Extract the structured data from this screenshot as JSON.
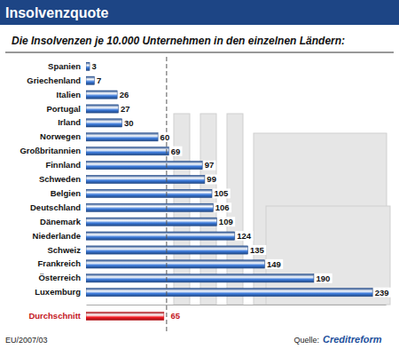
{
  "chart_data": {
    "type": "bar",
    "title": "Insolvenzquote",
    "subtitle": "Die Insolvenzen je 10.000 Unternehmen in den einzelnen Ländern:",
    "orientation": "horizontal",
    "categories": [
      "Spanien",
      "Griechenland",
      "Italien",
      "Portugal",
      "Irland",
      "Norwegen",
      "Großbritannien",
      "Finnland",
      "Schweden",
      "Belgien",
      "Deutschland",
      "Dänemark",
      "Niederlande",
      "Schweiz",
      "Frankreich",
      "Österreich",
      "Luxemburg"
    ],
    "values": [
      3,
      7,
      26,
      27,
      30,
      60,
      69,
      97,
      99,
      105,
      106,
      109,
      124,
      135,
      149,
      190,
      239
    ],
    "color": "#2f62b0",
    "data_labels": true,
    "tick_labels": "y",
    "xlim": [
      0,
      250
    ],
    "xticks": [],
    "average": {
      "label": "Durchschnitt",
      "value": 65,
      "color": "#c4161c"
    },
    "footnote": "EU/2007/03",
    "source_label": "Quelle:",
    "source": "Creditreform"
  }
}
